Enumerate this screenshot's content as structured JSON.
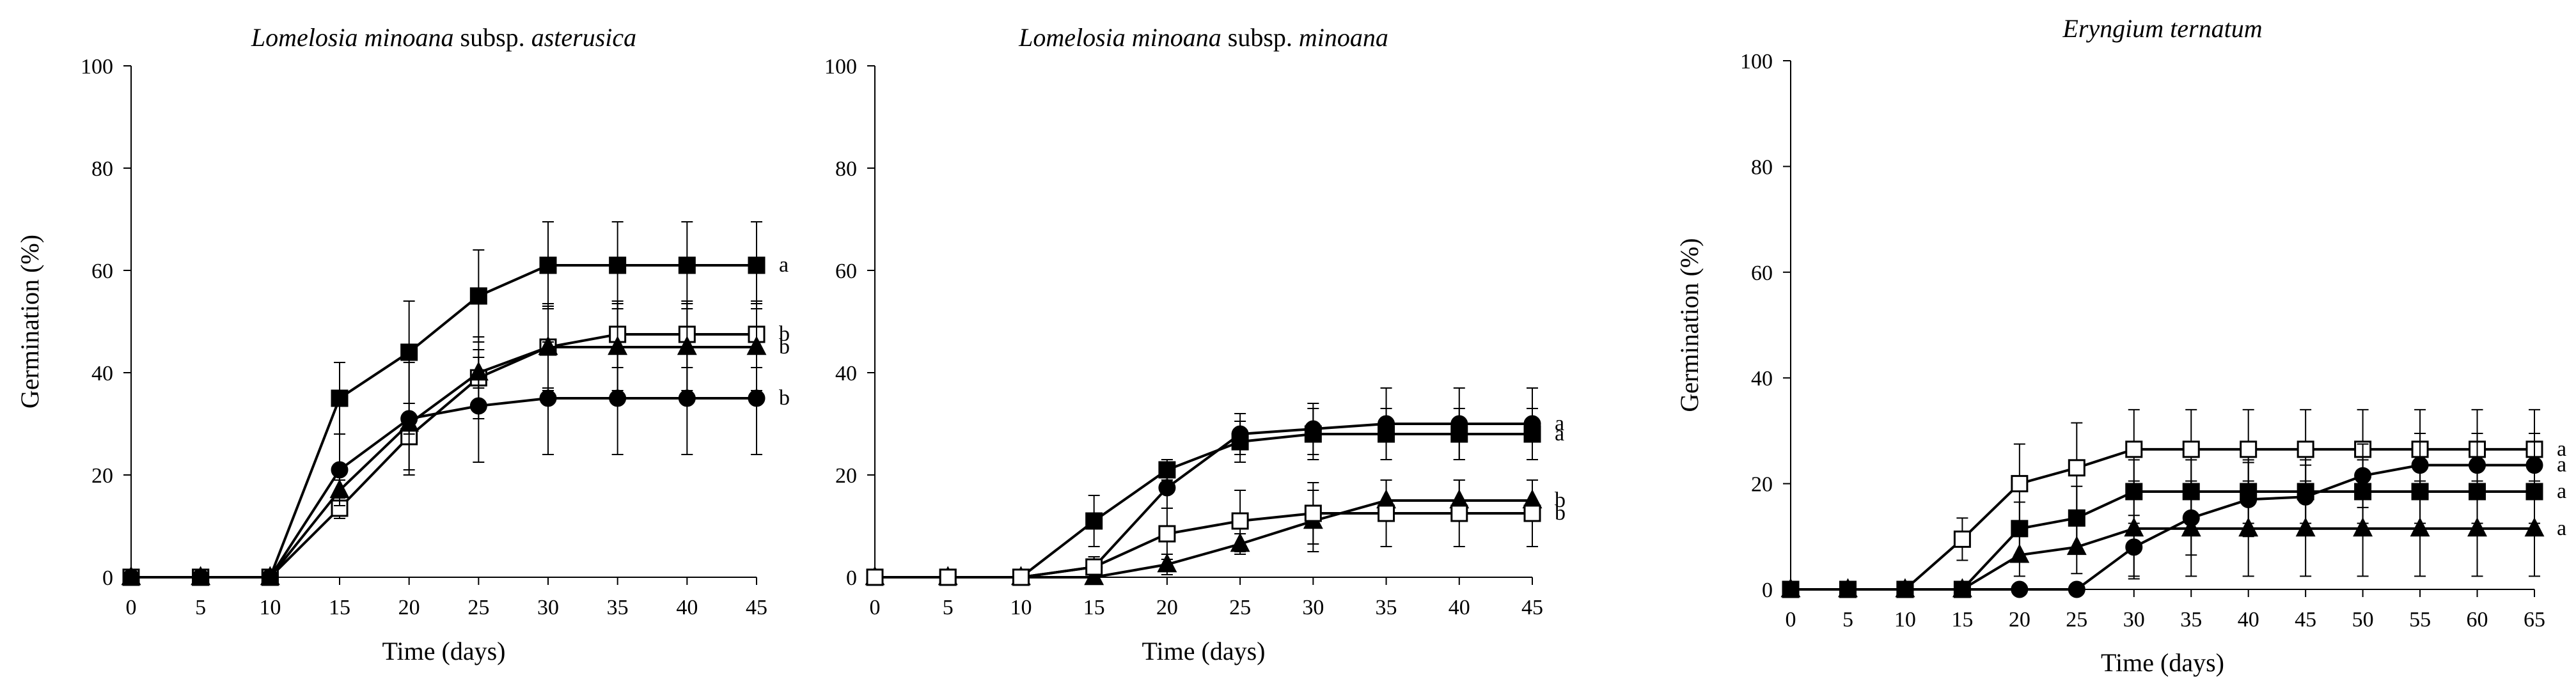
{
  "chart_data": [
    {
      "type": "line",
      "title_parts": [
        {
          "text": "Lomelosia minoana",
          "italic": true
        },
        {
          "text": " subsp. ",
          "italic": false
        },
        {
          "text": "asterusica",
          "italic": true
        }
      ],
      "xlabel": "Time (days)",
      "ylabel": "Germination (%)",
      "xlim": [
        0,
        45
      ],
      "ylim": [
        0,
        100
      ],
      "xticks": [
        0,
        5,
        10,
        15,
        20,
        25,
        30,
        35,
        40,
        45
      ],
      "yticks": [
        0,
        20,
        40,
        60,
        80,
        100
      ],
      "x": [
        0,
        5,
        10,
        15,
        20,
        25,
        30,
        35,
        40,
        45
      ],
      "series": [
        {
          "marker": "filled-square",
          "values": [
            0,
            0,
            0,
            35,
            44,
            55,
            61,
            61,
            61,
            61
          ],
          "err": [
            0,
            0,
            0,
            7,
            10,
            9,
            8.5,
            8.5,
            8.5,
            8.5
          ],
          "letter": "a"
        },
        {
          "marker": "open-square",
          "values": [
            0,
            0,
            0,
            13.5,
            27.5,
            39,
            45,
            47.5,
            47.5,
            47.5
          ],
          "err": [
            0,
            0,
            0,
            2,
            6.5,
            8,
            8,
            6.5,
            6.5,
            6.5
          ],
          "letter": "b"
        },
        {
          "marker": "filled-triangle",
          "values": [
            0,
            0,
            0,
            17,
            30,
            40,
            45,
            45,
            45,
            45
          ],
          "err": [
            0,
            0,
            0,
            2,
            2,
            3,
            8.5,
            8.5,
            8.5,
            8.5
          ],
          "letter": "b"
        },
        {
          "marker": "filled-circle",
          "values": [
            0,
            0,
            0,
            21,
            31,
            33.5,
            35,
            35,
            35,
            35
          ],
          "err": [
            0,
            0,
            0,
            7,
            11,
            11,
            11,
            11,
            11,
            11
          ],
          "letter": "b"
        }
      ]
    },
    {
      "type": "line",
      "title_parts": [
        {
          "text": "Lomelosia minoana",
          "italic": true
        },
        {
          "text": " subsp. ",
          "italic": false
        },
        {
          "text": "minoana",
          "italic": true
        }
      ],
      "xlabel": "Time (days)",
      "ylabel": "",
      "xlim": [
        0,
        45
      ],
      "ylim": [
        0,
        100
      ],
      "xticks": [
        0,
        5,
        10,
        15,
        20,
        25,
        30,
        35,
        40,
        45
      ],
      "yticks": [
        0,
        20,
        40,
        60,
        80,
        100
      ],
      "x": [
        0,
        5,
        10,
        15,
        20,
        25,
        30,
        35,
        40,
        45
      ],
      "series": [
        {
          "marker": "filled-circle",
          "values": [
            0,
            0,
            0,
            2,
            17.5,
            28,
            29,
            30,
            30,
            30
          ],
          "err": [
            0,
            0,
            0,
            2,
            4,
            4,
            5,
            7,
            7,
            7
          ],
          "letter": "a"
        },
        {
          "marker": "filled-square",
          "values": [
            0,
            0,
            0,
            11,
            21,
            26.5,
            28,
            28,
            28,
            28
          ],
          "err": [
            0,
            0,
            0,
            5,
            2,
            4,
            5,
            5,
            5,
            5
          ],
          "letter": "a"
        },
        {
          "marker": "filled-triangle",
          "values": [
            0,
            0,
            0,
            0,
            2.5,
            6.5,
            11,
            15,
            15,
            15
          ],
          "err": [
            0,
            0,
            0,
            0,
            2,
            2,
            6,
            4,
            4,
            4
          ],
          "letter": "b"
        },
        {
          "marker": "open-square",
          "values": [
            0,
            0,
            0,
            2,
            8.5,
            11,
            12.5,
            12.5,
            12.5,
            12.5
          ],
          "err": [
            0,
            0,
            0,
            2,
            5,
            6,
            6,
            6.5,
            6.5,
            6.5
          ],
          "letter": "b"
        }
      ]
    },
    {
      "type": "line",
      "title_parts": [
        {
          "text": "Eryngium ternatum",
          "italic": true
        }
      ],
      "xlabel": "Time (days)",
      "ylabel": "Germination (%)",
      "xlim": [
        0,
        65
      ],
      "ylim": [
        0,
        100
      ],
      "xticks": [
        0,
        5,
        10,
        15,
        20,
        25,
        30,
        35,
        40,
        45,
        50,
        55,
        60,
        65
      ],
      "yticks": [
        0,
        20,
        40,
        60,
        80,
        100
      ],
      "x": [
        0,
        5,
        10,
        15,
        20,
        25,
        30,
        35,
        40,
        45,
        50,
        55,
        60,
        65
      ],
      "series": [
        {
          "marker": "open-square",
          "values": [
            0,
            0,
            0,
            9.5,
            20,
            23,
            26.5,
            26.5,
            26.5,
            26.5,
            26.5,
            26.5,
            26.5,
            26.5
          ],
          "err": [
            0,
            0,
            0,
            4,
            7.5,
            8.5,
            7.5,
            7.5,
            7.5,
            7.5,
            7.5,
            7.5,
            7.5,
            7.5
          ],
          "letter": "a"
        },
        {
          "marker": "filled-circle",
          "values": [
            0,
            0,
            0,
            0,
            0,
            0,
            8,
            13.5,
            17,
            17.5,
            21.5,
            23.5,
            23.5,
            23.5
          ],
          "err": [
            0,
            0,
            0,
            0,
            0,
            0,
            6,
            7,
            7,
            6,
            6,
            6,
            6,
            6
          ],
          "letter": "a"
        },
        {
          "marker": "filled-square",
          "values": [
            0,
            0,
            0,
            0,
            11.5,
            13.5,
            18.5,
            18.5,
            18.5,
            18.5,
            18.5,
            18.5,
            18.5,
            18.5
          ],
          "err": [
            0,
            0,
            0,
            0,
            5,
            6,
            6,
            6,
            6,
            6,
            6,
            6,
            6,
            6
          ],
          "letter": "a"
        },
        {
          "marker": "filled-triangle",
          "values": [
            0,
            0,
            0,
            0,
            6.5,
            8,
            11.5,
            11.5,
            11.5,
            11.5,
            11.5,
            11.5,
            11.5,
            11.5
          ],
          "err": [
            0,
            0,
            0,
            0,
            4,
            5,
            9,
            9,
            9,
            9,
            9,
            9,
            9,
            9
          ],
          "letter": "a"
        }
      ]
    }
  ]
}
